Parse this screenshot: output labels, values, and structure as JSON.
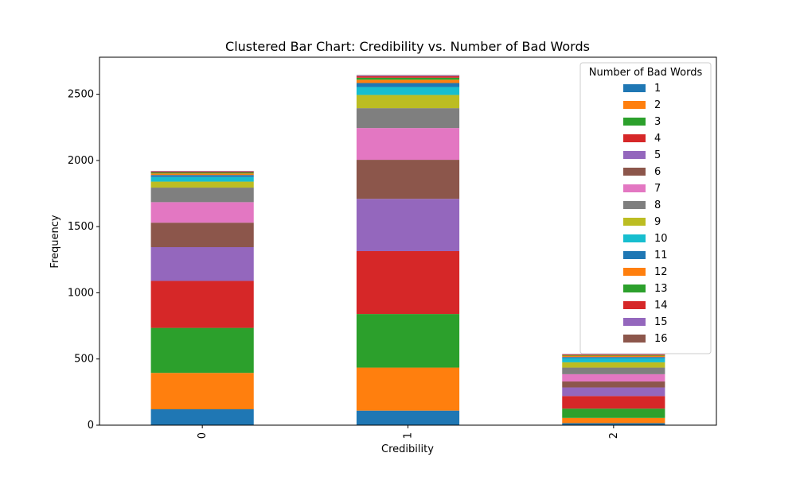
{
  "chart_data": {
    "type": "bar",
    "stacked": true,
    "title": "Clustered Bar Chart: Credibility vs. Number of Bad Words",
    "xlabel": "Credibility",
    "ylabel": "Frequency",
    "categories": [
      "0",
      "1",
      "2"
    ],
    "ylim": [
      0,
      2780
    ],
    "yticks": [
      0,
      500,
      1000,
      1500,
      2000,
      2500
    ],
    "grid": false,
    "legend": {
      "title": "Number of Bad Words",
      "placement": "top-right"
    },
    "series": [
      {
        "name": "1",
        "color": "#1f77b4",
        "values": [
          120,
          110,
          15
        ]
      },
      {
        "name": "2",
        "color": "#ff7f0e",
        "values": [
          275,
          325,
          40
        ]
      },
      {
        "name": "3",
        "color": "#2ca02c",
        "values": [
          340,
          405,
          70
        ]
      },
      {
        "name": "4",
        "color": "#d62728",
        "values": [
          355,
          475,
          95
        ]
      },
      {
        "name": "5",
        "color": "#9467bd",
        "values": [
          255,
          395,
          65
        ]
      },
      {
        "name": "6",
        "color": "#8c564b",
        "values": [
          185,
          295,
          45
        ]
      },
      {
        "name": "7",
        "color": "#e377c2",
        "values": [
          155,
          240,
          55
        ]
      },
      {
        "name": "8",
        "color": "#7f7f7f",
        "values": [
          110,
          150,
          50
        ]
      },
      {
        "name": "9",
        "color": "#bcbd22",
        "values": [
          45,
          100,
          40
        ]
      },
      {
        "name": "10",
        "color": "#17becf",
        "values": [
          35,
          60,
          30
        ]
      },
      {
        "name": "11",
        "color": "#1f77b4",
        "values": [
          15,
          30,
          10
        ]
      },
      {
        "name": "12",
        "color": "#ff7f0e",
        "values": [
          12,
          25,
          10
        ]
      },
      {
        "name": "13",
        "color": "#2ca02c",
        "values": [
          8,
          15,
          5
        ]
      },
      {
        "name": "14",
        "color": "#d62728",
        "values": [
          6,
          12,
          5
        ]
      },
      {
        "name": "15",
        "color": "#9467bd",
        "values": [
          3,
          5,
          2
        ]
      },
      {
        "name": "16",
        "color": "#8c564b",
        "values": [
          2,
          3,
          1
        ]
      }
    ]
  }
}
